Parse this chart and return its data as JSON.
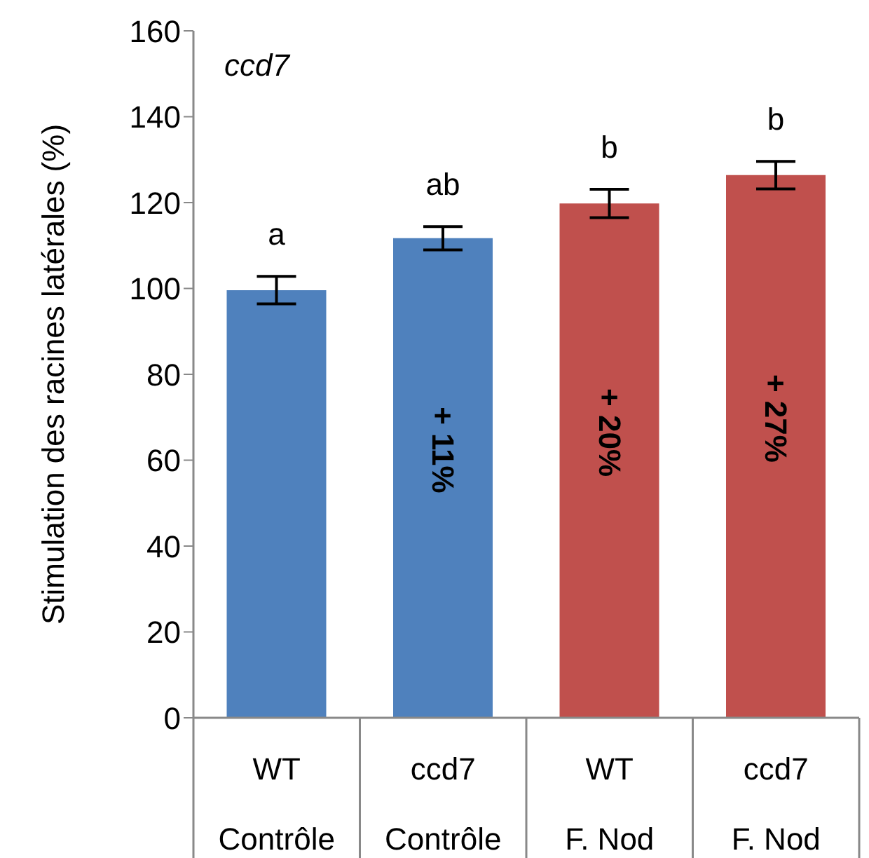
{
  "chart_data": {
    "type": "bar",
    "title": "ccd7",
    "ylabel": "Stimulation des racines latérales (%)",
    "categories": [
      "WT\nContrôle",
      "ccd7\nContrôle",
      "WT\nF. Nod",
      "ccd7\nF. Nod"
    ],
    "values": [
      99.6,
      111.7,
      119.8,
      126.4
    ],
    "colors": [
      "#4f81bd",
      "#4f81bd",
      "#c0504d",
      "#c0504d"
    ],
    "errors": [
      3.2,
      2.7,
      3.3,
      3.2
    ],
    "annotations": [
      "a",
      "ab",
      "b",
      "b",
      "+ 11%",
      "+ 20%",
      "+ 27%"
    ],
    "ylim": [
      0,
      160
    ],
    "yticks": [
      0,
      20,
      40,
      60,
      80,
      100,
      120,
      140,
      160
    ],
    "grid": false,
    "legend": false
  }
}
